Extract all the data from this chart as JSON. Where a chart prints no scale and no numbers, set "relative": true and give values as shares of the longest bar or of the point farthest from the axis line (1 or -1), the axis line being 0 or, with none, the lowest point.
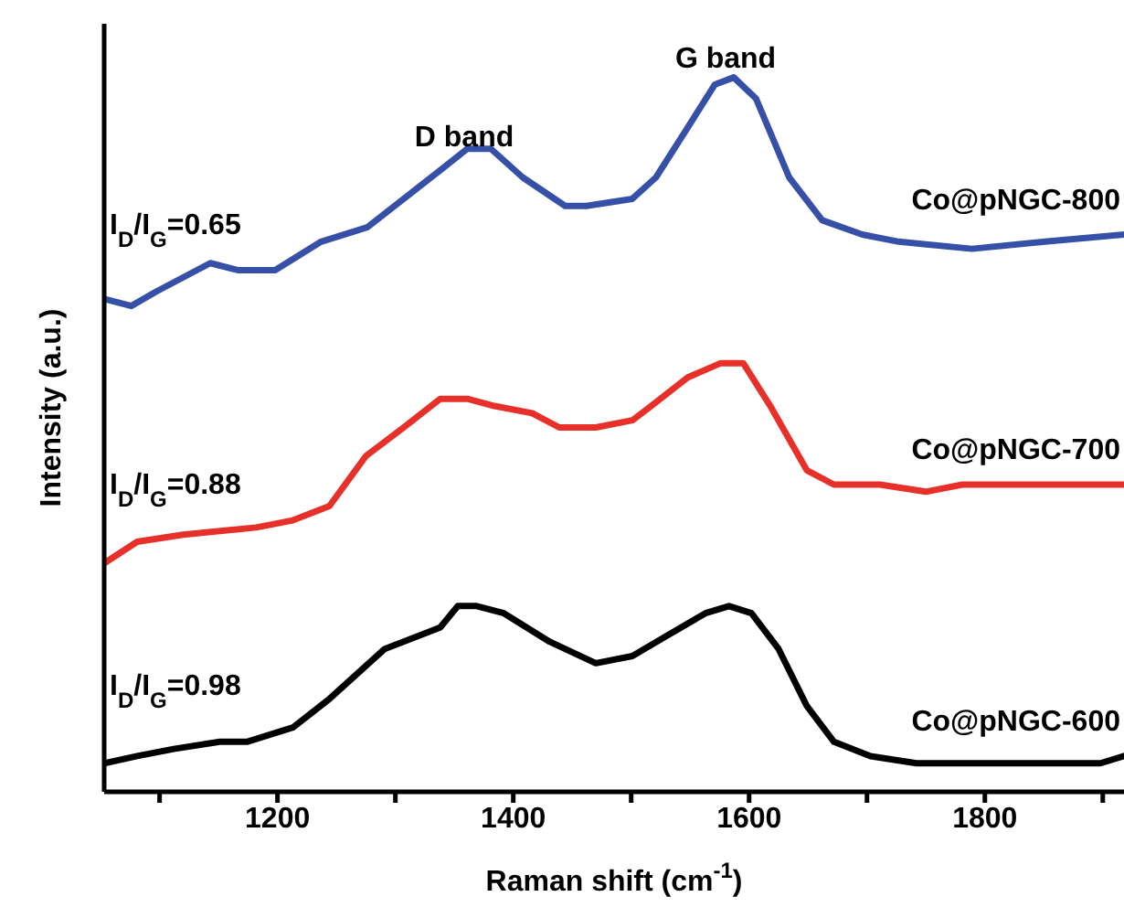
{
  "chart_data": {
    "type": "line",
    "relative": true,
    "xlabel": "Raman shift (cm$^{-1}$)",
    "ylabel": "Intensity (a.u.)",
    "xlim": [
      1053,
      1918
    ],
    "xticks": [
      {
        "value": 1100,
        "label": null
      },
      1200,
      {
        "value": 1300,
        "label": null
      },
      1400,
      {
        "value": 1500,
        "label": null
      },
      1600,
      {
        "value": 1700,
        "label": null
      },
      1800,
      {
        "value": 1900,
        "label": null
      }
    ],
    "series": [
      {
        "name": "Co@pNGC-800",
        "color": "#3650a8",
        "x": [
          1053,
          1076,
          1097,
          1143,
          1167,
          1198,
          1237,
          1276,
          1307,
          1338,
          1361,
          1381,
          1408,
          1444,
          1462,
          1501,
          1521,
          1548,
          1571,
          1587,
          1606,
          1634,
          1662,
          1696,
          1727,
          1789,
          1851,
          1918
        ],
        "values": [
          0.69,
          0.68,
          0.7,
          0.74,
          0.73,
          0.73,
          0.77,
          0.79,
          0.83,
          0.87,
          0.9,
          0.9,
          0.86,
          0.82,
          0.82,
          0.83,
          0.86,
          0.93,
          0.99,
          1.0,
          0.97,
          0.86,
          0.8,
          0.78,
          0.77,
          0.76,
          0.77,
          0.78
        ]
      },
      {
        "name": "Co@pNGC-700",
        "color": "#e8302a",
        "x": [
          1053,
          1081,
          1120,
          1182,
          1213,
          1244,
          1275,
          1307,
          1338,
          1361,
          1384,
          1416,
          1439,
          1470,
          1501,
          1517,
          1548,
          1576,
          1595,
          1618,
          1649,
          1672,
          1711,
          1750,
          1781,
          1836,
          1882,
          1918
        ],
        "values": [
          0.32,
          0.35,
          0.36,
          0.37,
          0.38,
          0.4,
          0.47,
          0.51,
          0.55,
          0.55,
          0.54,
          0.53,
          0.51,
          0.51,
          0.52,
          0.54,
          0.58,
          0.6,
          0.6,
          0.54,
          0.45,
          0.43,
          0.43,
          0.42,
          0.43,
          0.43,
          0.43,
          0.43
        ]
      },
      {
        "name": "Co@pNGC-600",
        "color": "#000000",
        "x": [
          1053,
          1081,
          1112,
          1151,
          1174,
          1213,
          1244,
          1291,
          1338,
          1353,
          1369,
          1392,
          1431,
          1470,
          1501,
          1532,
          1563,
          1583,
          1602,
          1625,
          1649,
          1672,
          1703,
          1742,
          1820,
          1898,
          1918
        ],
        "values": [
          0.04,
          0.05,
          0.06,
          0.07,
          0.07,
          0.09,
          0.13,
          0.2,
          0.23,
          0.26,
          0.26,
          0.25,
          0.21,
          0.18,
          0.19,
          0.22,
          0.25,
          0.26,
          0.25,
          0.2,
          0.12,
          0.07,
          0.05,
          0.04,
          0.04,
          0.04,
          0.05
        ]
      }
    ],
    "annotations": [
      "D band",
      "G band",
      "I$_{D}$/I$_{G}$=0.65",
      "I$_{D}$/I$_{G}$=0.88",
      "I$_{D}$/I$_{G}$=0.98"
    ]
  }
}
